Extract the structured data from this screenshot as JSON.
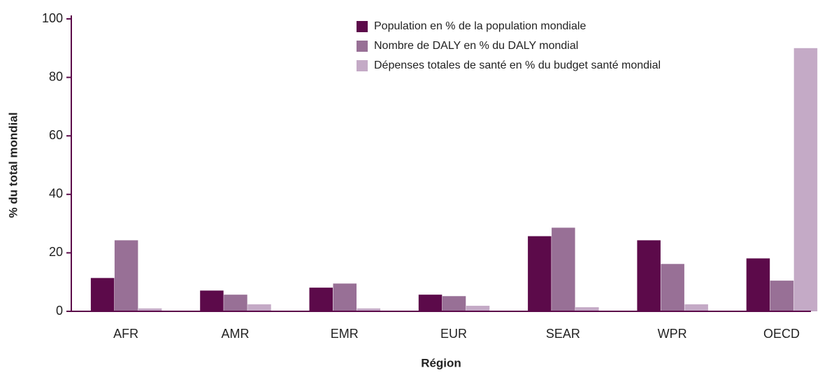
{
  "chart_data": {
    "type": "bar",
    "categories": [
      "AFR",
      "AMR",
      "EMR",
      "EUR",
      "SEAR",
      "WPR",
      "OECD"
    ],
    "series": [
      {
        "name": "Population en % de la population mondiale",
        "color": "#5c0a4a",
        "values": [
          11.4,
          7.1,
          8.1,
          5.7,
          25.7,
          24.3,
          18.1
        ]
      },
      {
        "name": "Nombre de DALY en % du DALY mondial",
        "color": "#987096",
        "values": [
          24.3,
          5.7,
          9.5,
          5.2,
          28.6,
          16.2,
          10.5
        ]
      },
      {
        "name": "Dépenses totales de santé en % du budget santé mondial",
        "color": "#c4aac6",
        "values": [
          1,
          2.4,
          1,
          1.9,
          1.4,
          2.4,
          90
        ]
      }
    ],
    "xlabel": "Région",
    "ylabel": "% du total mondial",
    "ylim": [
      0,
      100
    ],
    "yticks": [
      0,
      20,
      40,
      60,
      80,
      100
    ],
    "grid": false,
    "legend": "top"
  }
}
